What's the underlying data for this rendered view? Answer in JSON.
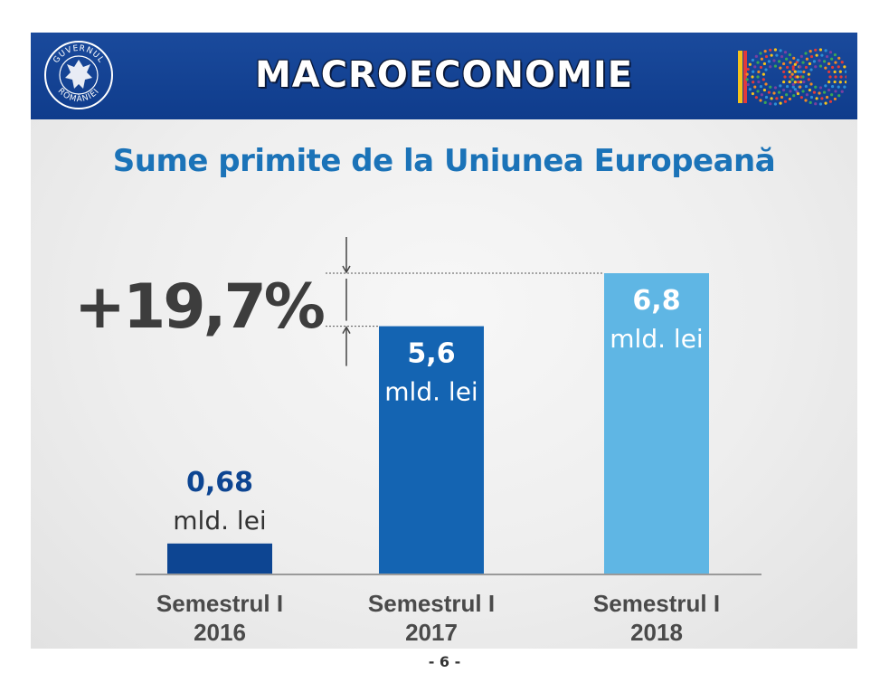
{
  "header": {
    "title": "MACROECONOMIE"
  },
  "emblem": {
    "top_text": "GUVERNUL",
    "bottom_text": "ROMÂNIEI"
  },
  "centenar": {
    "text": "100"
  },
  "chart_data": {
    "type": "bar",
    "title": "Sume primite de la Uniunea Europeană",
    "categories": [
      {
        "line1": "Semestrul I",
        "line2": "2016"
      },
      {
        "line1": "Semestrul I",
        "line2": "2017"
      },
      {
        "line1": "Semestrul I",
        "line2": "2018"
      }
    ],
    "values": [
      0.68,
      5.6,
      6.8
    ],
    "value_labels": [
      "0,68",
      "5,6",
      "6,8"
    ],
    "unit": "mld. lei",
    "colors": [
      "#0d4592",
      "#1464b2",
      "#5fb6e4"
    ],
    "label_colors": [
      "#0d4592",
      "#ffffff",
      "#ffffff"
    ],
    "ylim": [
      0,
      6.8
    ],
    "annotation": "+19,7%"
  },
  "footer": {
    "page": "- 6 -"
  }
}
